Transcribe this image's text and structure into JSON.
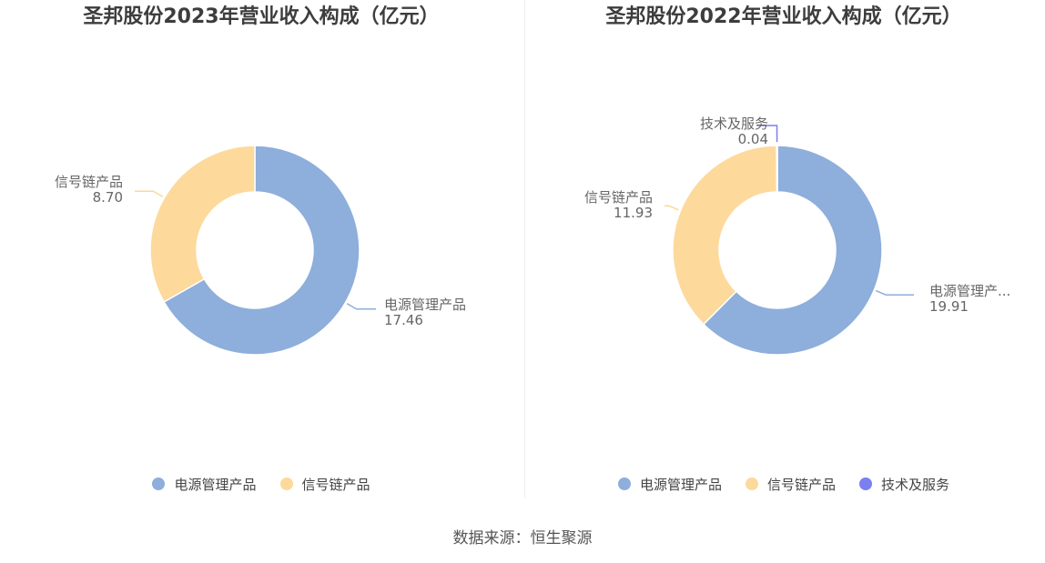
{
  "chart_data": [
    {
      "type": "pie",
      "title": "圣邦股份2023年营业收入构成（亿元）",
      "slices": [
        {
          "label": "电源管理产品",
          "slice_label": "电源管理产品",
          "value_text": "17.46",
          "value": 17.46,
          "color": "#8eaedb"
        },
        {
          "label": "信号链产品",
          "slice_label": "信号链产品",
          "value_text": "8.70",
          "value": 8.7,
          "color": "#fdd99b"
        }
      ],
      "donut": true,
      "legend_position": "bottom"
    },
    {
      "type": "pie",
      "title": "圣邦股份2022年营业收入构成（亿元）",
      "slices": [
        {
          "label": "电源管理产品",
          "slice_label": "电源管理产...",
          "value_text": "19.91",
          "value": 19.91,
          "color": "#8eaedb"
        },
        {
          "label": "信号链产品",
          "slice_label": "信号链产品",
          "value_text": "11.93",
          "value": 11.93,
          "color": "#fdd99b"
        },
        {
          "label": "技术及服务",
          "slice_label": "技术及服务",
          "value_text": "0.04",
          "value": 0.04,
          "color": "#7b7fef"
        }
      ],
      "donut": true,
      "legend_position": "bottom"
    }
  ],
  "source": "数据来源：恒生聚源"
}
